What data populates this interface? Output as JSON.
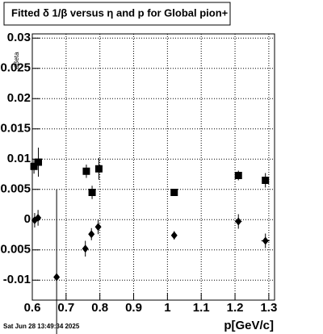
{
  "chart_data": {
    "type": "scatter",
    "title": "Fitted δ 1/β versus η and p for Global pion+",
    "y_label": "dBeta",
    "x_label": "p[GeV/c]",
    "footer": "Sat Jun 28 13:49:34 2025",
    "xlim": [
      0.6,
      1.317
    ],
    "ylim": [
      -0.0133,
      0.0307
    ],
    "xticks": [
      0.6,
      0.7,
      0.8,
      0.9,
      1,
      1.1,
      1.2,
      1.3
    ],
    "yticks": [
      -0.01,
      -0.005,
      0,
      0.005,
      0.01,
      0.015,
      0.02,
      0.025,
      0.03
    ],
    "grid": true,
    "series": [
      {
        "marker": "square",
        "color": "#000000",
        "x": [
          0.605,
          0.618,
          0.76,
          0.777,
          0.797,
          1.02,
          1.21,
          1.29
        ],
        "values": [
          0.0088,
          0.0095,
          0.008,
          0.0045,
          0.0084,
          0.0045,
          0.0073,
          0.0065
        ],
        "errors": [
          0.0012,
          0.0024,
          0.0011,
          0.0011,
          0.0018,
          0.0005,
          0.0008,
          0.0012
        ],
        "xerrors": [
          0.003,
          0.003,
          0.003,
          0.003,
          0.003,
          0.003,
          0.01,
          0.01
        ]
      },
      {
        "marker": "diamond",
        "color": "#000000",
        "x": [
          0.607,
          0.617,
          0.672,
          0.757,
          0.775,
          0.795,
          1.02,
          1.21,
          1.29
        ],
        "values": [
          -0.0001,
          0.0003,
          -0.0095,
          -0.0048,
          -0.0024,
          -0.0012,
          -0.0026,
          -0.0003,
          -0.0035
        ],
        "errors": [
          0.0012,
          0.0013,
          0.0145,
          0.0013,
          0.001,
          0.0012,
          0.0007,
          0.0012,
          0.0012
        ],
        "xerrors": [
          0.003,
          0.003,
          0.003,
          0.003,
          0.003,
          0.003,
          0.005,
          0.01,
          0.012
        ]
      }
    ]
  }
}
